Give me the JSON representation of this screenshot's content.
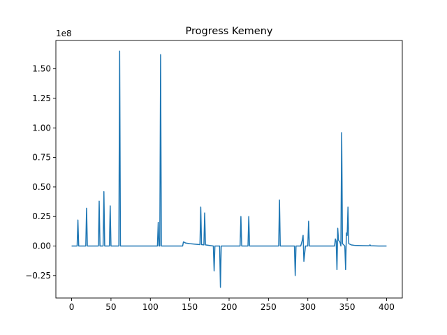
{
  "chart_data": {
    "type": "line",
    "title": "Progress Kemeny",
    "xlabel": "",
    "ylabel": "",
    "y_offset_label": "1e8",
    "xlim": [
      -20,
      420
    ],
    "ylim": [
      -0.44,
      1.74
    ],
    "x_ticks": [
      0,
      50,
      100,
      150,
      200,
      250,
      300,
      350,
      400
    ],
    "x_tick_labels": [
      "0",
      "50",
      "100",
      "150",
      "200",
      "250",
      "300",
      "350",
      "400"
    ],
    "y_ticks": [
      -0.25,
      0.0,
      0.25,
      0.5,
      0.75,
      1.0,
      1.25,
      1.5
    ],
    "y_tick_labels": [
      "−0.25",
      "0.00",
      "0.25",
      "0.50",
      "0.75",
      "1.00",
      "1.25",
      "1.50"
    ],
    "grid": false,
    "legend": "none",
    "color": "#1f77b4",
    "series": [
      {
        "values": [
          [
            0,
            0.0
          ],
          [
            7,
            0.0
          ],
          [
            8,
            0.22
          ],
          [
            9,
            0.0
          ],
          [
            18,
            0.0
          ],
          [
            19,
            0.32
          ],
          [
            20,
            0.0
          ],
          [
            34,
            0.0
          ],
          [
            35,
            0.38
          ],
          [
            36,
            0.0
          ],
          [
            40,
            0.0
          ],
          [
            41,
            0.46
          ],
          [
            42,
            0.0
          ],
          [
            48,
            0.0
          ],
          [
            49,
            0.34
          ],
          [
            50,
            0.0
          ],
          [
            60,
            0.0
          ],
          [
            61,
            1.65
          ],
          [
            62,
            0.0
          ],
          [
            109,
            0.0
          ],
          [
            110,
            0.2
          ],
          [
            111,
            0.0
          ],
          [
            112,
            0.0
          ],
          [
            113,
            1.62
          ],
          [
            114,
            0.0
          ],
          [
            141,
            0.0
          ],
          [
            142,
            0.035
          ],
          [
            145,
            0.025
          ],
          [
            150,
            0.02
          ],
          [
            158,
            0.015
          ],
          [
            163,
            0.012
          ],
          [
            164,
            0.33
          ],
          [
            165,
            0.012
          ],
          [
            168,
            0.01
          ],
          [
            169,
            0.28
          ],
          [
            170,
            0.01
          ],
          [
            180,
            0.0
          ],
          [
            181,
            -0.21
          ],
          [
            182,
            0.0
          ],
          [
            188,
            0.0
          ],
          [
            189,
            -0.35
          ],
          [
            190,
            0.0
          ],
          [
            214,
            0.0
          ],
          [
            215,
            0.25
          ],
          [
            216,
            0.0
          ],
          [
            224,
            0.0
          ],
          [
            225,
            0.25
          ],
          [
            226,
            0.0
          ],
          [
            263,
            0.0
          ],
          [
            264,
            0.39
          ],
          [
            265,
            0.0
          ],
          [
            283,
            0.0
          ],
          [
            284,
            -0.25
          ],
          [
            285,
            0.0
          ],
          [
            291,
            0.0
          ],
          [
            293,
            0.05
          ],
          [
            294,
            0.09
          ],
          [
            295,
            -0.13
          ],
          [
            297,
            0.0
          ],
          [
            300,
            0.0
          ],
          [
            301,
            0.21
          ],
          [
            302,
            0.0
          ],
          [
            334,
            0.0
          ],
          [
            335,
            0.06
          ],
          [
            336,
            0.04
          ],
          [
            337,
            -0.2
          ],
          [
            338,
            0.15
          ],
          [
            339,
            0.05
          ],
          [
            341,
            0.03
          ],
          [
            342,
            0.0
          ],
          [
            343,
            0.96
          ],
          [
            344,
            0.02
          ],
          [
            347,
            0.0
          ],
          [
            348,
            -0.2
          ],
          [
            349,
            0.11
          ],
          [
            350,
            0.09
          ],
          [
            351,
            0.33
          ],
          [
            352,
            0.02
          ],
          [
            355,
            0.01
          ],
          [
            360,
            0.005
          ],
          [
            370,
            0.003
          ],
          [
            378,
            0.002
          ],
          [
            379,
            0.01
          ],
          [
            380,
            0.002
          ],
          [
            390,
            0.0
          ],
          [
            400,
            0.0
          ]
        ]
      }
    ]
  }
}
